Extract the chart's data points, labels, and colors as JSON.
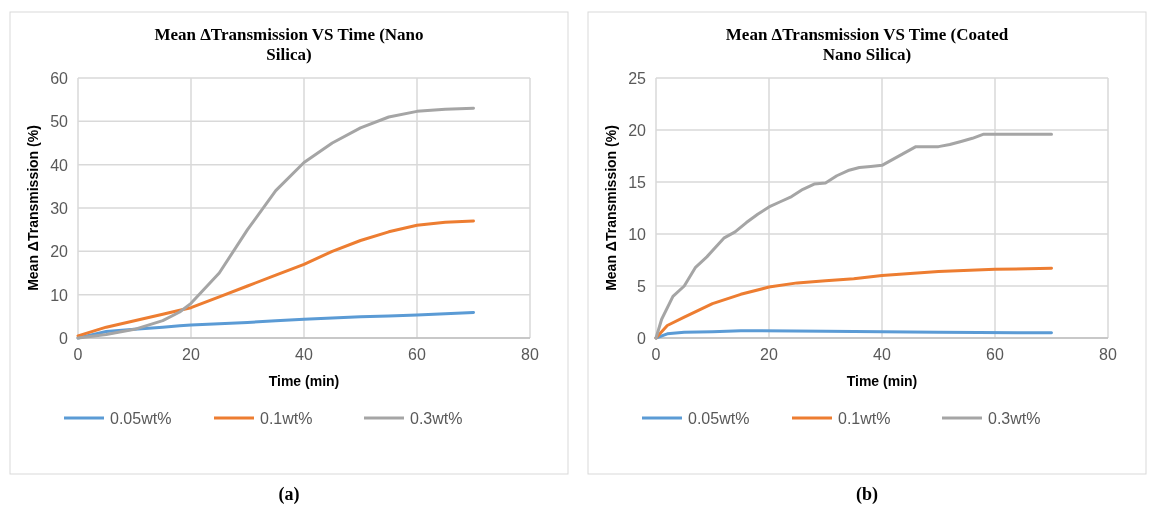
{
  "chart_data": [
    {
      "type": "line",
      "title": "Mean ΔTransmission VS Time (Nano Silica)",
      "xlabel": "Time (min)",
      "ylabel": "Mean ΔTransmission (%)",
      "xlim": [
        0,
        80
      ],
      "xticks": [
        0,
        20,
        40,
        60,
        80
      ],
      "ylim": [
        0,
        60
      ],
      "yticks": [
        0,
        10,
        20,
        30,
        40,
        50,
        60
      ],
      "grid": true,
      "legend": "bottom",
      "annotations": [
        "(a)"
      ],
      "x": [
        0,
        5,
        10,
        15,
        18,
        20,
        25,
        30,
        35,
        40,
        45,
        50,
        55,
        60,
        65,
        70
      ],
      "series": [
        {
          "name": "0.05wt%",
          "color": "#5b9bd5",
          "values": [
            0,
            1.5,
            2,
            2.5,
            2.8,
            3,
            3.3,
            3.6,
            4,
            4.3,
            4.6,
            4.9,
            5.1,
            5.3,
            5.6,
            5.9
          ]
        },
        {
          "name": "0.1wt%",
          "color": "#ed7d31",
          "values": [
            0.5,
            2.5,
            4,
            5.5,
            6.4,
            7,
            9.5,
            12,
            14.5,
            17,
            20,
            22.5,
            24.5,
            26,
            26.7,
            27
          ]
        },
        {
          "name": "0.3wt%",
          "color": "#a5a5a5",
          "values": [
            0,
            0.8,
            2,
            4,
            6,
            8,
            15,
            25,
            34,
            40.5,
            45,
            48.5,
            51,
            52.3,
            52.8,
            53
          ]
        }
      ]
    },
    {
      "type": "line",
      "title": "Mean ΔTransmission VS Time (Coated Nano Silica)",
      "xlabel": "Time (min)",
      "ylabel": "Mean ΔTransmission (%)",
      "xlim": [
        0,
        80
      ],
      "xticks": [
        0,
        20,
        40,
        60,
        80
      ],
      "ylim": [
        0,
        25
      ],
      "yticks": [
        0,
        5,
        10,
        15,
        20,
        25
      ],
      "grid": true,
      "legend": "bottom",
      "annotations": [
        "(b)"
      ],
      "series": [
        {
          "name": "0.05wt%",
          "color": "#5b9bd5",
          "x": [
            0,
            2,
            5,
            10,
            15,
            30,
            50,
            70
          ],
          "values": [
            0,
            0.4,
            0.55,
            0.6,
            0.7,
            0.65,
            0.55,
            0.5
          ]
        },
        {
          "name": "0.1wt%",
          "color": "#ed7d31",
          "x": [
            0,
            2,
            5,
            10,
            15,
            20,
            25,
            30,
            35,
            40,
            50,
            60,
            70
          ],
          "values": [
            0,
            1.2,
            2,
            3.3,
            4.2,
            4.9,
            5.3,
            5.5,
            5.7,
            6,
            6.4,
            6.6,
            6.7
          ]
        },
        {
          "name": "0.3wt%",
          "color": "#a5a5a5",
          "x": [
            0,
            1,
            3,
            5,
            7,
            9,
            12,
            14,
            16,
            18,
            20,
            22,
            24,
            26,
            28,
            30,
            32,
            34,
            36,
            38,
            40,
            42,
            44,
            46,
            48,
            50,
            52,
            54,
            56,
            58,
            70
          ],
          "values": [
            0,
            1.8,
            4,
            5,
            6.8,
            7.8,
            9.6,
            10.2,
            11.1,
            11.9,
            12.6,
            13.1,
            13.6,
            14.3,
            14.8,
            14.9,
            15.6,
            16.1,
            16.4,
            16.5,
            16.6,
            17.2,
            17.8,
            18.4,
            18.4,
            18.4,
            18.6,
            18.9,
            19.2,
            19.6,
            19.6
          ]
        }
      ]
    }
  ]
}
